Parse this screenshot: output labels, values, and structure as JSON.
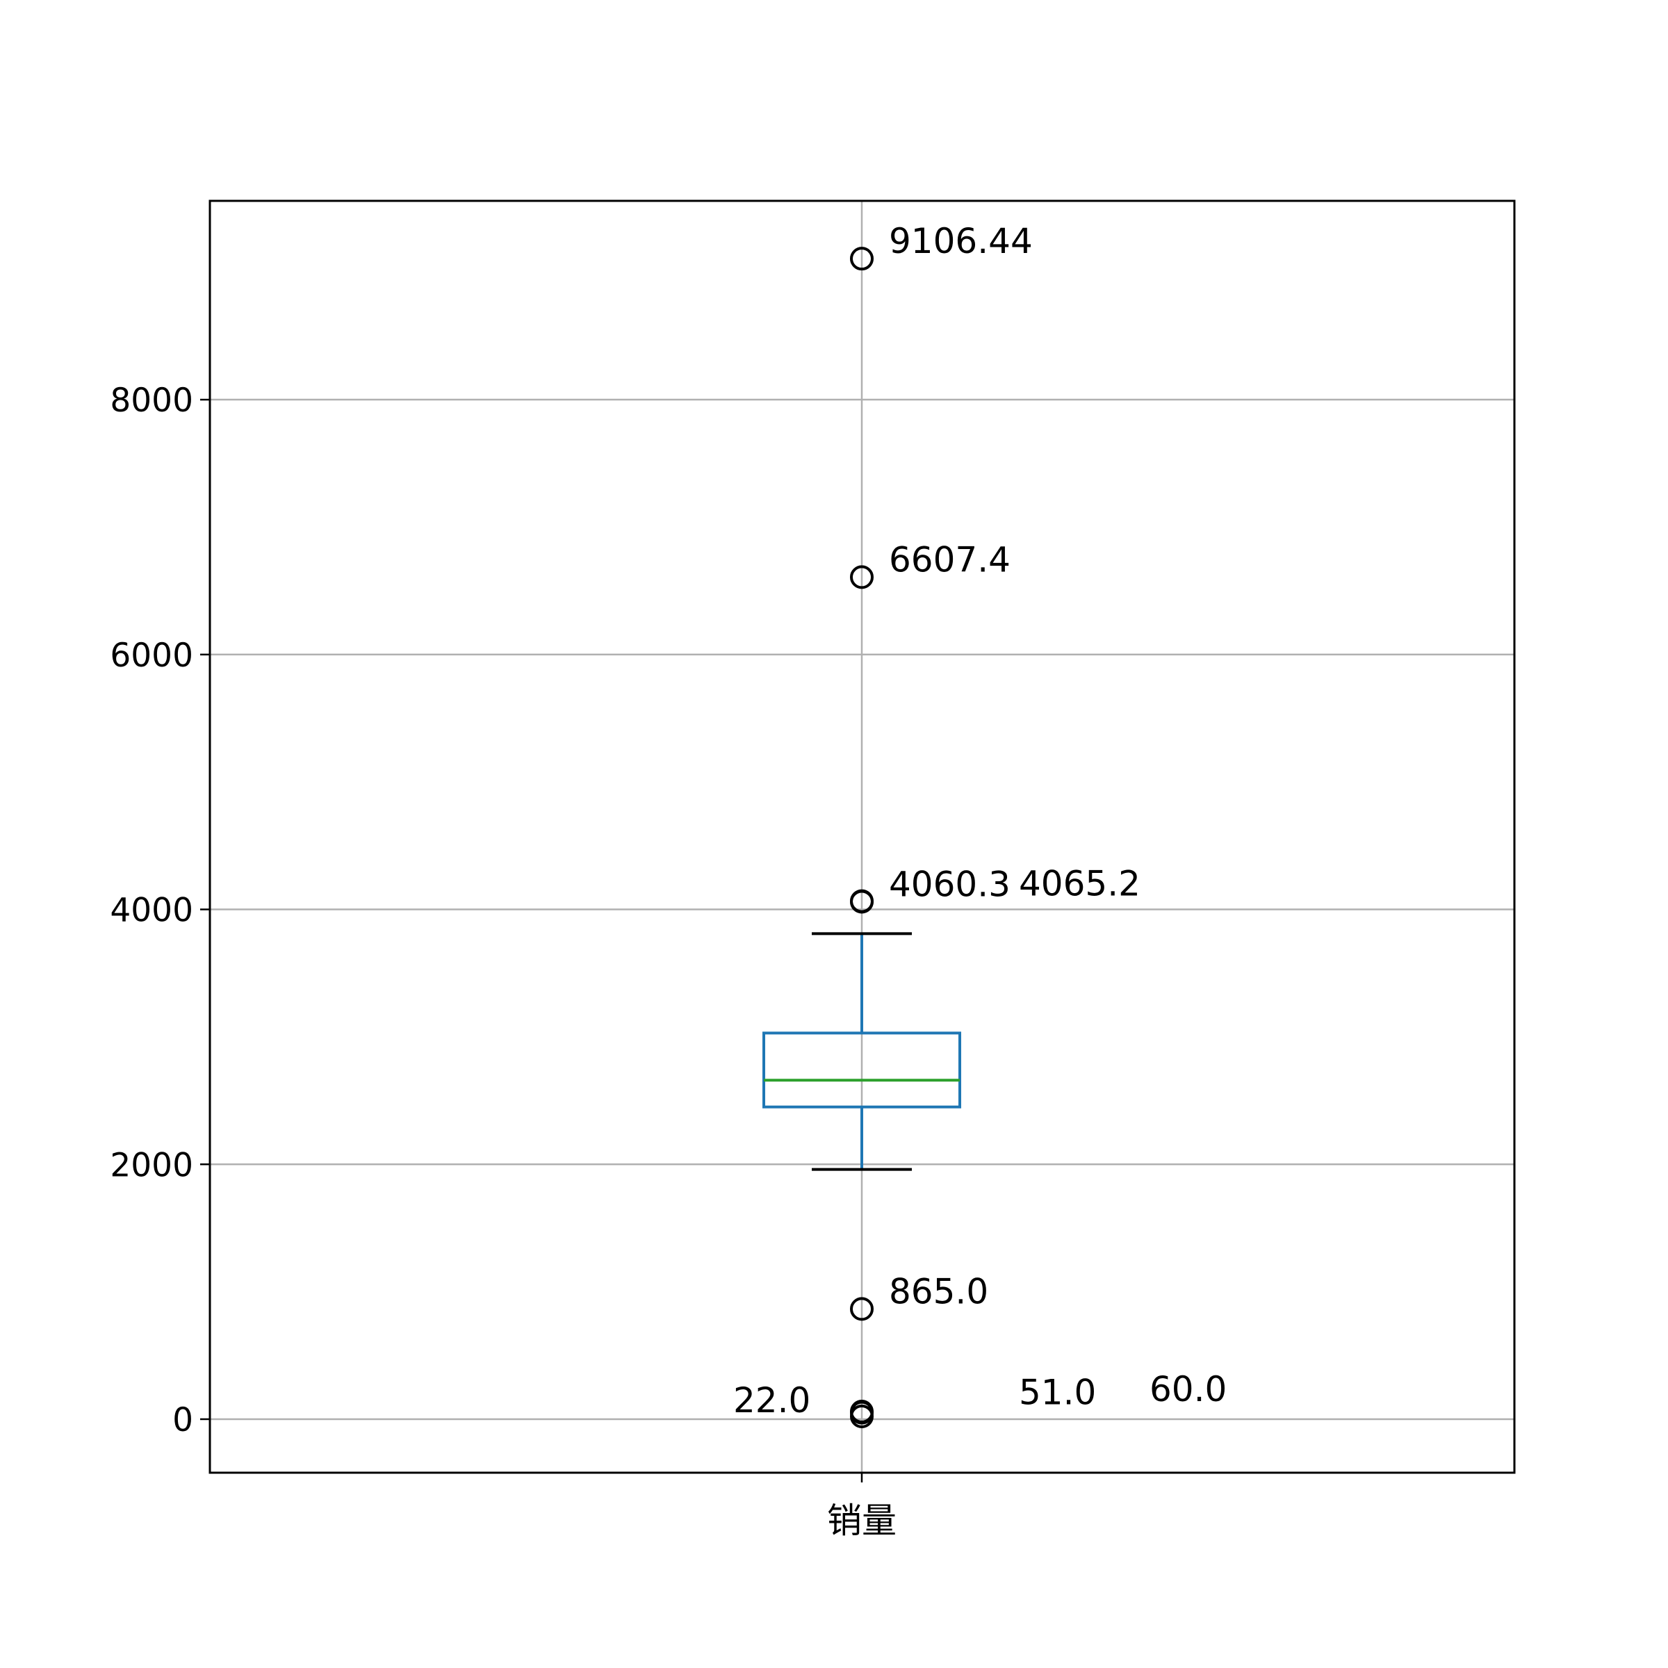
{
  "chart_data": {
    "type": "box",
    "categories": [
      "销量"
    ],
    "ylim": [
      -420,
      9560
    ],
    "yticks": [
      0,
      2000,
      4000,
      6000,
      8000
    ],
    "grid": true,
    "box": {
      "q1": 2450,
      "median": 2660,
      "q3": 3030,
      "whisker_low": 1960,
      "whisker_high": 3810
    },
    "outliers": [
      9106.44,
      6607.4,
      4065.2,
      4060.3,
      865.0,
      60.0,
      51.0,
      22.0
    ],
    "annotations": [
      {
        "text": "9106.44",
        "x": 1.0,
        "y": 9106.44
      },
      {
        "text": "6607.4",
        "x": 1.0,
        "y": 6607.4
      },
      {
        "text": "4060.3",
        "x": 1.0,
        "y": 4060.3
      },
      {
        "text": "4065.2",
        "x": 1.0,
        "y": 4065.2
      },
      {
        "text": "865.0",
        "x": 1.0,
        "y": 865.0
      },
      {
        "text": "22.0",
        "x": 1.0,
        "y": 22.0
      },
      {
        "text": "51.0",
        "x": 1.0,
        "y": 51.0
      },
      {
        "text": "60.0",
        "x": 1.0,
        "y": 60.0
      }
    ],
    "colors": {
      "box": "#1f77b4",
      "median": "#2ca02c",
      "caps": "#000000",
      "grid": "#b0b0b0",
      "outlier": "#000000"
    }
  }
}
